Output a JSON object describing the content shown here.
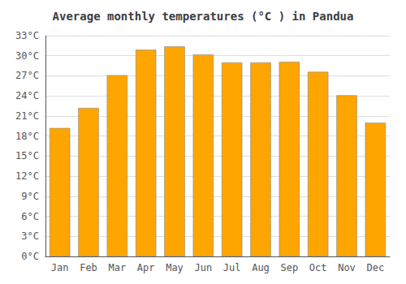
{
  "chart_data": {
    "type": "bar",
    "title": "Average monthly temperatures (°C ) in Pandua",
    "categories": [
      "Jan",
      "Feb",
      "Mar",
      "Apr",
      "May",
      "Jun",
      "Jul",
      "Aug",
      "Sep",
      "Oct",
      "Nov",
      "Dec"
    ],
    "values": [
      19.2,
      22.2,
      27.1,
      30.9,
      31.4,
      30.2,
      29.0,
      29.0,
      29.1,
      27.6,
      24.1,
      20.0
    ],
    "color": "#FFA500",
    "ylim": [
      0,
      33
    ],
    "yticks": [
      {
        "value": 0,
        "label": "0°C"
      },
      {
        "value": 3,
        "label": "3°C"
      },
      {
        "value": 6,
        "label": "6°C"
      },
      {
        "value": 9,
        "label": "9°C"
      },
      {
        "value": 12,
        "label": "12°C"
      },
      {
        "value": 15,
        "label": "15°C"
      },
      {
        "value": 18,
        "label": "18°C"
      },
      {
        "value": 21,
        "label": "21°C"
      },
      {
        "value": 24,
        "label": "24°C"
      },
      {
        "value": 27,
        "label": "27°C"
      },
      {
        "value": 30,
        "label": "30°C"
      },
      {
        "value": 33,
        "label": "33°C"
      }
    ],
    "grid": true
  }
}
